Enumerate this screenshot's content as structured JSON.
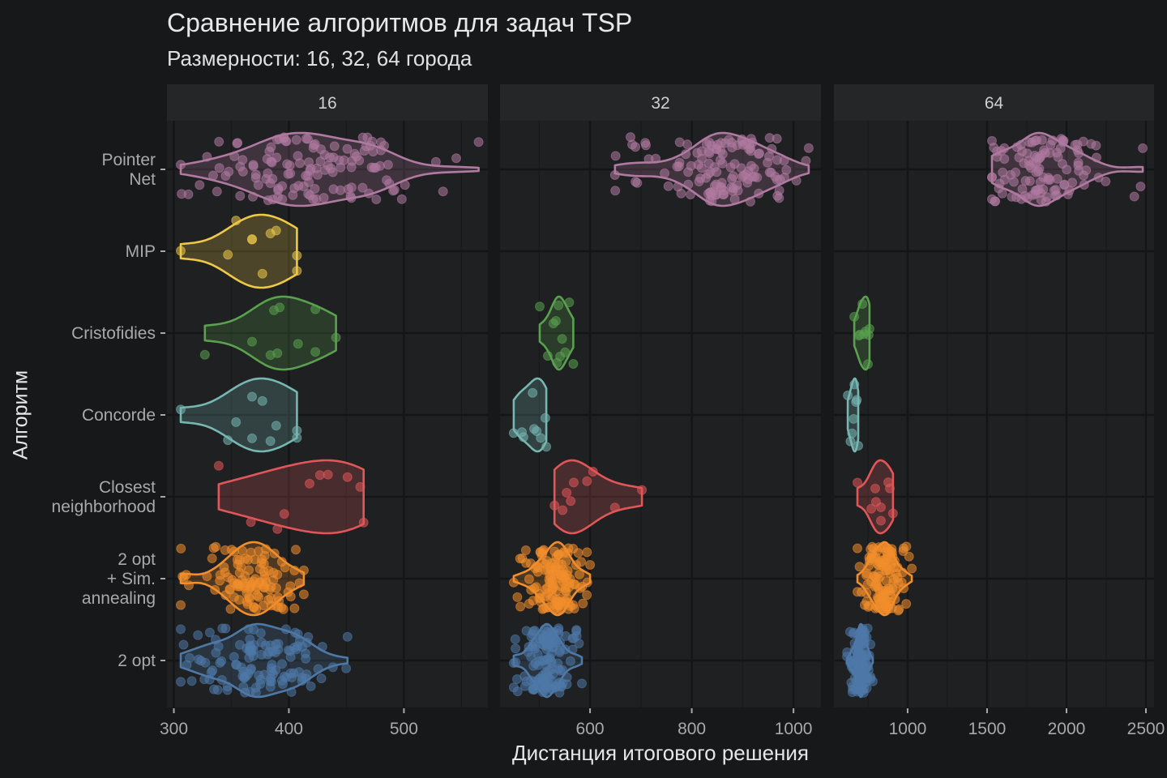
{
  "chart_data": {
    "type": "violin",
    "title": "Сравнение алгоритмов для задач TSP",
    "subtitle": "Размерности: 16, 32, 64 города",
    "xlabel": "Дистанция итогового решения",
    "ylabel": "Алгоритм",
    "grid": true,
    "legend": "none",
    "facet_scales": "free_x",
    "categories": [
      "Pointer\nNet",
      "MIP",
      "Cristofidies",
      "Concorde",
      "Closest\nneighborhood",
      "2 opt\n+ Sim.\nannealing",
      "2 opt"
    ],
    "colors": [
      "#b07aa1",
      "#edc948",
      "#59a14f",
      "#76b7b2",
      "#e15759",
      "#f28e2b",
      "#4e79a7"
    ],
    "panels": [
      {
        "label": "16",
        "xlim": [
          294,
          573
        ],
        "ticks": [
          300,
          400,
          500
        ],
        "groups": [
          {
            "category": 0,
            "summary": {
              "n": 130,
              "min": 306,
              "max": 565,
              "median": 420
            }
          },
          {
            "category": 1,
            "values": [
              306,
              347,
              354,
              368,
              368,
              377,
              384,
              389,
              407,
              407
            ]
          },
          {
            "category": 2,
            "values": [
              327,
              368,
              384,
              387,
              390,
              392,
              408,
              423,
              423,
              441
            ]
          },
          {
            "category": 3,
            "values": [
              306,
              347,
              354,
              368,
              368,
              377,
              384,
              389,
              407,
              407
            ]
          },
          {
            "category": 4,
            "values": [
              339,
              367,
              390,
              396,
              418,
              427,
              434,
              451,
              462,
              465
            ]
          },
          {
            "category": 5,
            "summary": {
              "n": 110,
              "min": 306,
              "max": 413,
              "median": 372
            }
          },
          {
            "category": 6,
            "summary": {
              "n": 120,
              "min": 306,
              "max": 451,
              "median": 372
            }
          }
        ]
      },
      {
        "label": "32",
        "xlim": [
          423,
          1054
        ],
        "ticks": [
          600,
          800,
          1000
        ],
        "groups": [
          {
            "category": 0,
            "summary": {
              "n": 130,
              "min": 649,
              "max": 1030,
              "median": 870
            }
          },
          {
            "category": 2,
            "values": [
              501,
              517,
              528,
              533,
              535,
              538,
              541,
              545,
              551,
              559,
              567
            ]
          },
          {
            "category": 3,
            "values": [
              450,
              466,
              469,
              487,
              490,
              495,
              503,
              512,
              514
            ]
          },
          {
            "category": 4,
            "values": [
              530,
              546,
              554,
              562,
              568,
              594,
              606,
              649,
              702
            ]
          },
          {
            "category": 5,
            "summary": {
              "n": 130,
              "min": 450,
              "max": 600,
              "median": 530
            }
          },
          {
            "category": 6,
            "summary": {
              "n": 130,
              "min": 450,
              "max": 584,
              "median": 515
            }
          }
        ]
      },
      {
        "label": "64",
        "xlim": [
          536,
          2551
        ],
        "ticks": [
          1000,
          1500,
          2000,
          2500
        ],
        "groups": [
          {
            "category": 0,
            "summary": {
              "n": 110,
              "min": 1531,
              "max": 2480,
              "median": 1850
            }
          },
          {
            "category": 2,
            "values": [
              664,
              694,
              699,
              715,
              725,
              735,
              750,
              755,
              760
            ]
          },
          {
            "category": 3,
            "values": [
              623,
              640,
              650,
              660,
              665,
              675,
              680,
              689
            ]
          },
          {
            "category": 4,
            "values": [
              684,
              771,
              796,
              801,
              832,
              832,
              878,
              888,
              908
            ]
          },
          {
            "category": 5,
            "summary": {
              "n": 120,
              "min": 684,
              "max": 1026,
              "median": 850
            }
          },
          {
            "category": 6,
            "summary": {
              "n": 120,
              "min": 618,
              "max": 781,
              "median": 700
            }
          }
        ]
      }
    ]
  }
}
